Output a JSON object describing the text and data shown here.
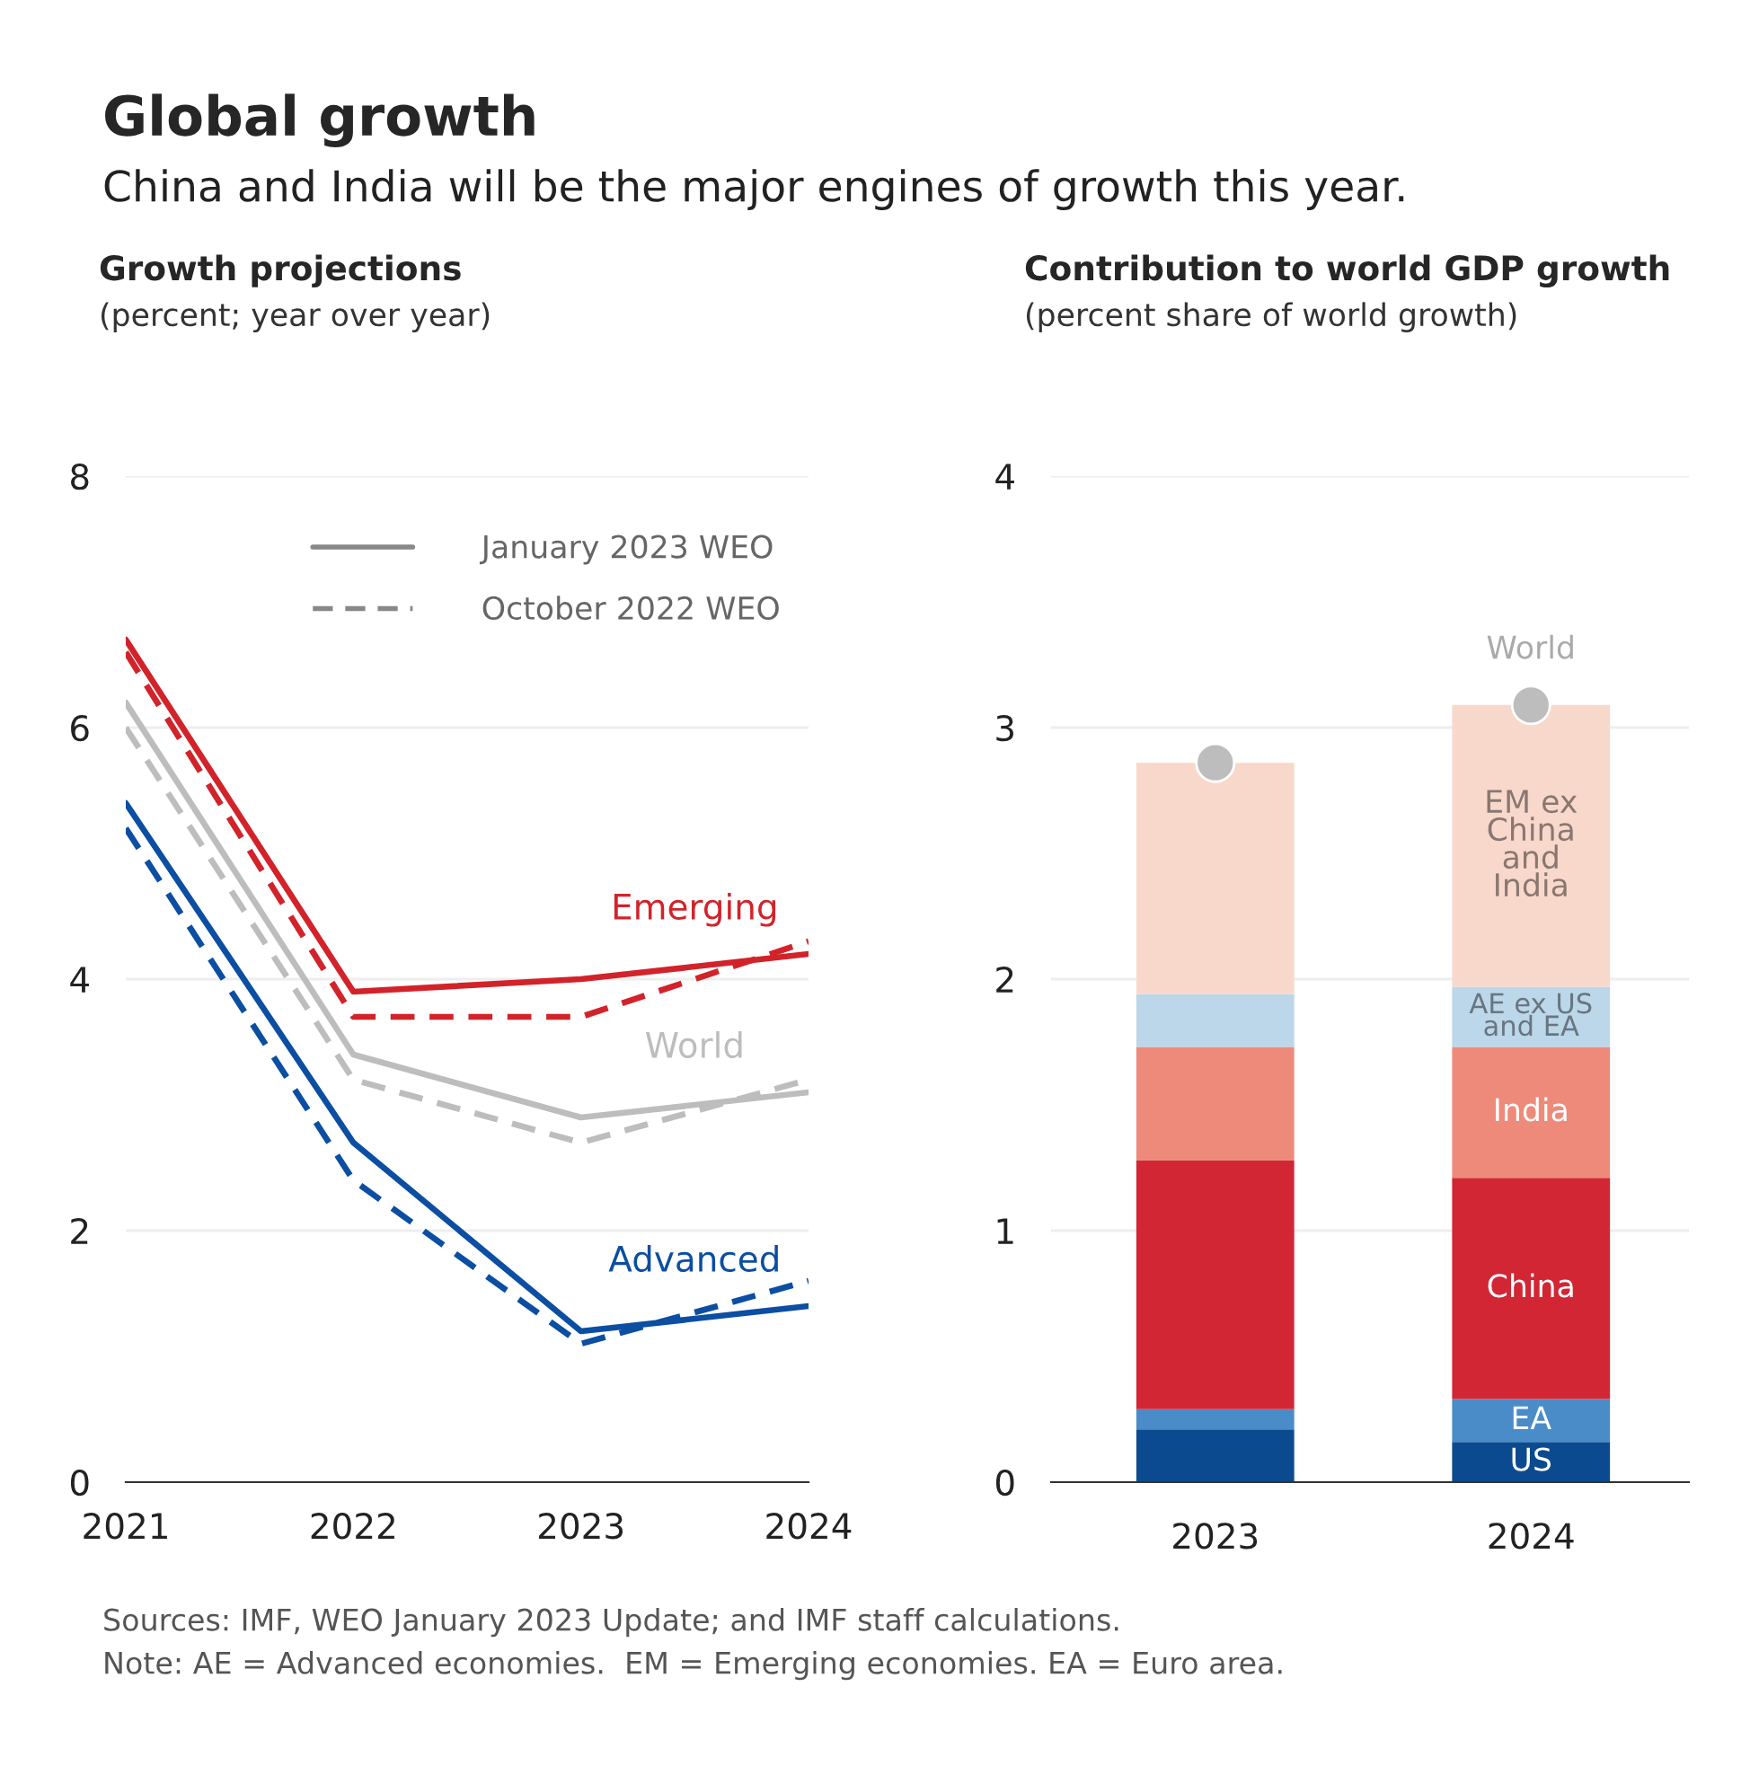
{
  "chart_data": [
    {
      "type": "line",
      "title": "Growth projections",
      "subtitle": "(percent; year over year)",
      "categories": [
        "2021",
        "2022",
        "2023",
        "2024"
      ],
      "series": [
        {
          "name": "Emerging",
          "color": "#d2232a",
          "line_style": "solid",
          "values": [
            6.7,
            3.9,
            4.0,
            4.2
          ]
        },
        {
          "color": "#d2232a",
          "line_style": "dashed",
          "values": [
            6.6,
            3.7,
            3.7,
            4.3
          ]
        },
        {
          "name": "World",
          "color": "#bdbdbd",
          "line_style": "solid",
          "values": [
            6.2,
            3.4,
            2.9,
            3.1
          ]
        },
        {
          "color": "#bdbdbd",
          "line_style": "dashed",
          "values": [
            6.0,
            3.2,
            2.7,
            3.2
          ]
        },
        {
          "name": "Advanced",
          "color": "#0b4ea2",
          "line_style": "solid",
          "values": [
            5.4,
            2.7,
            1.2,
            1.4
          ]
        },
        {
          "color": "#0b4ea2",
          "line_style": "dashed",
          "values": [
            5.2,
            2.4,
            1.1,
            1.6
          ]
        },
        {
          "name": "January 2023 WEO",
          "color": "#888888",
          "line_style": "solid",
          "values": [
            null,
            null,
            null,
            null
          ]
        },
        {
          "name": "October 2022 WEO",
          "color": "#888888",
          "line_style": "dashed",
          "values": [
            null,
            null,
            null,
            null
          ]
        }
      ],
      "ylim": [
        0,
        8
      ],
      "yticks": [
        0,
        2,
        4,
        6,
        8
      ],
      "grid": "y",
      "legend": "top right",
      "annotations": [
        "Global growth",
        "China and India will be the major engines of growth this year."
      ]
    },
    {
      "type": "bar",
      "title": "Contribution to world GDP growth",
      "subtitle": "(percent share of world growth)",
      "categories": [
        "2023",
        "2024"
      ],
      "stacked": true,
      "series": [
        {
          "name": "US",
          "color": "#0b4a8f",
          "values": [
            0.21,
            0.16
          ]
        },
        {
          "name": "EA",
          "color": "#4a8cc8",
          "values": [
            0.08,
            0.17
          ]
        },
        {
          "name": "China",
          "color": "#d22634",
          "values": [
            0.99,
            0.88
          ]
        },
        {
          "name": "India",
          "color": "#ee8a7a",
          "values": [
            0.45,
            0.52
          ]
        },
        {
          "name": "AE ex US\nand EA",
          "color": "#bcd6ea",
          "values": [
            0.21,
            0.24
          ]
        },
        {
          "name": "EM ex\nChina\nand\nIndia",
          "color": "#f9d8cc",
          "values": [
            0.92,
            1.12
          ]
        },
        {
          "name": "World",
          "type": "scatter",
          "color": "#bdbdbd",
          "values": [
            2.86,
            3.09
          ]
        }
      ],
      "ylim": [
        0,
        4
      ],
      "yticks": [
        0,
        1,
        2,
        3,
        4
      ],
      "grid": "y",
      "annotations": [
        "Sources: IMF, WEO January 2023 Update; and IMF staff calculations.",
        "Note: AE = Advanced economies.  EM = Emerging economies. EA = Euro area."
      ]
    }
  ]
}
